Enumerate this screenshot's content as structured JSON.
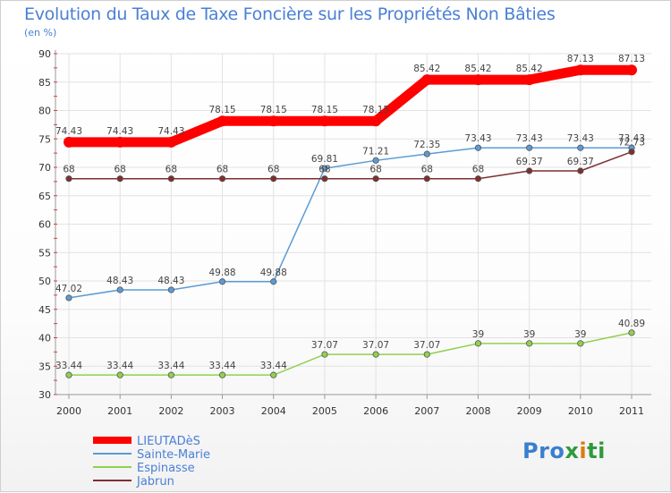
{
  "chart_data": {
    "type": "line",
    "title": "Evolution du Taux de Taxe Foncière sur les Propriétés Non Bâties",
    "ylabel": "(en %)",
    "xlabel": "",
    "categories": [
      "2000",
      "2001",
      "2002",
      "2003",
      "2004",
      "2005",
      "2006",
      "2007",
      "2008",
      "2009",
      "2010",
      "2011"
    ],
    "ylim": [
      30,
      90
    ],
    "yticks": [
      30,
      35,
      40,
      45,
      50,
      55,
      60,
      65,
      70,
      75,
      80,
      85,
      90
    ],
    "grid": true,
    "legend_position": "bottom-left",
    "series": [
      {
        "name": "LIEUTADèS",
        "color": "#ff0000",
        "emphasis": true,
        "values": [
          74.43,
          74.43,
          74.43,
          78.15,
          78.15,
          78.15,
          78.15,
          85.42,
          85.42,
          85.42,
          87.13,
          87.13
        ]
      },
      {
        "name": "Sainte-Marie",
        "color": "#5b9bd5",
        "emphasis": false,
        "values": [
          47.02,
          48.43,
          48.43,
          49.88,
          49.88,
          69.81,
          71.21,
          72.35,
          73.43,
          73.43,
          73.43,
          73.43
        ]
      },
      {
        "name": "Espinasse",
        "color": "#92d050",
        "emphasis": false,
        "values": [
          33.44,
          33.44,
          33.44,
          33.44,
          33.44,
          37.07,
          37.07,
          37.07,
          39,
          39,
          39,
          40.89
        ]
      },
      {
        "name": "Jabrun",
        "color": "#7f2f2f",
        "emphasis": false,
        "values": [
          68,
          68,
          68,
          68,
          68,
          68,
          68,
          68,
          68,
          69.37,
          69.37,
          72.73
        ]
      }
    ]
  },
  "logo": {
    "text1": "Pro",
    "text2": "x",
    "text3": "i",
    "text4": "ti"
  }
}
